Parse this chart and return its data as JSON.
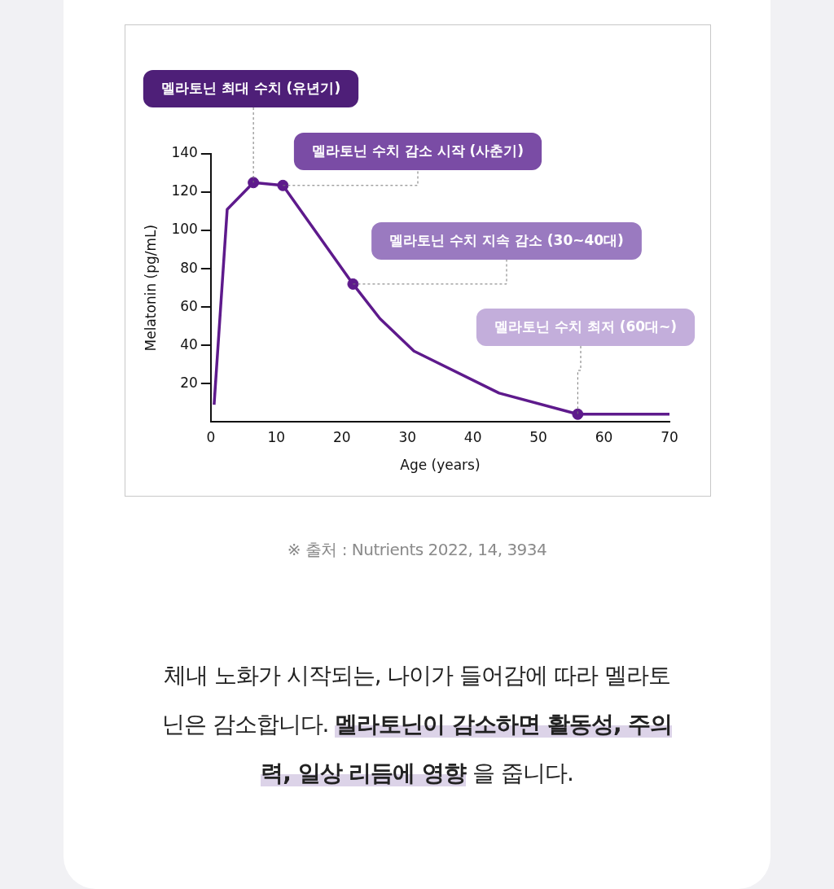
{
  "chart_data": {
    "type": "line",
    "xlabel": "Age (years)",
    "ylabel": "Melatonin (pg/mL)",
    "xlim": [
      0,
      70
    ],
    "xticks": [
      0,
      10,
      20,
      30,
      40,
      50,
      60,
      70
    ],
    "ylim": [
      0,
      140
    ],
    "yticks": [
      20,
      40,
      60,
      80,
      100,
      120,
      140
    ],
    "grid": false,
    "legend": false,
    "series": [
      {
        "type": "line",
        "color": "#5e1a8c",
        "marker": "none",
        "x": [
          0.5,
          2.5,
          6.5,
          11,
          21.7,
          25.8,
          31,
          44,
          56,
          70
        ],
        "values": [
          9,
          111,
          125,
          123.5,
          72,
          54,
          37,
          15,
          4,
          4
        ]
      },
      {
        "type": "scatter",
        "color": "#5e1a8c",
        "marker": "circle",
        "x": [
          6.5,
          11,
          21.7,
          56
        ],
        "values": [
          125,
          123.5,
          72,
          4
        ]
      }
    ],
    "annotations": [
      {
        "text": "멜라토닌 최대 수치 (유년기)",
        "x": 6.5,
        "y": 125
      },
      {
        "text": "멜라토닌 수치 감소 시작 (사춘기)",
        "x": 11,
        "y": 123.5
      },
      {
        "text": "멜라토닌 수치 지속 감소 (30~40대)",
        "x": 21.7,
        "y": 72
      },
      {
        "text": "멜라토닌 수치 최저 (60대~)",
        "x": 56,
        "y": 4
      },
      "※ 출처 : Nutrients 2022, 14, 3934",
      "체내 노화가 시작되는,  나이가 들어감에 따라 멜라토닌은 감소합니다.",
      "멜라토닌이 감소하면 활동성, 주의력, 일상 리듬에 영향",
      "을 줍니다."
    ]
  }
}
